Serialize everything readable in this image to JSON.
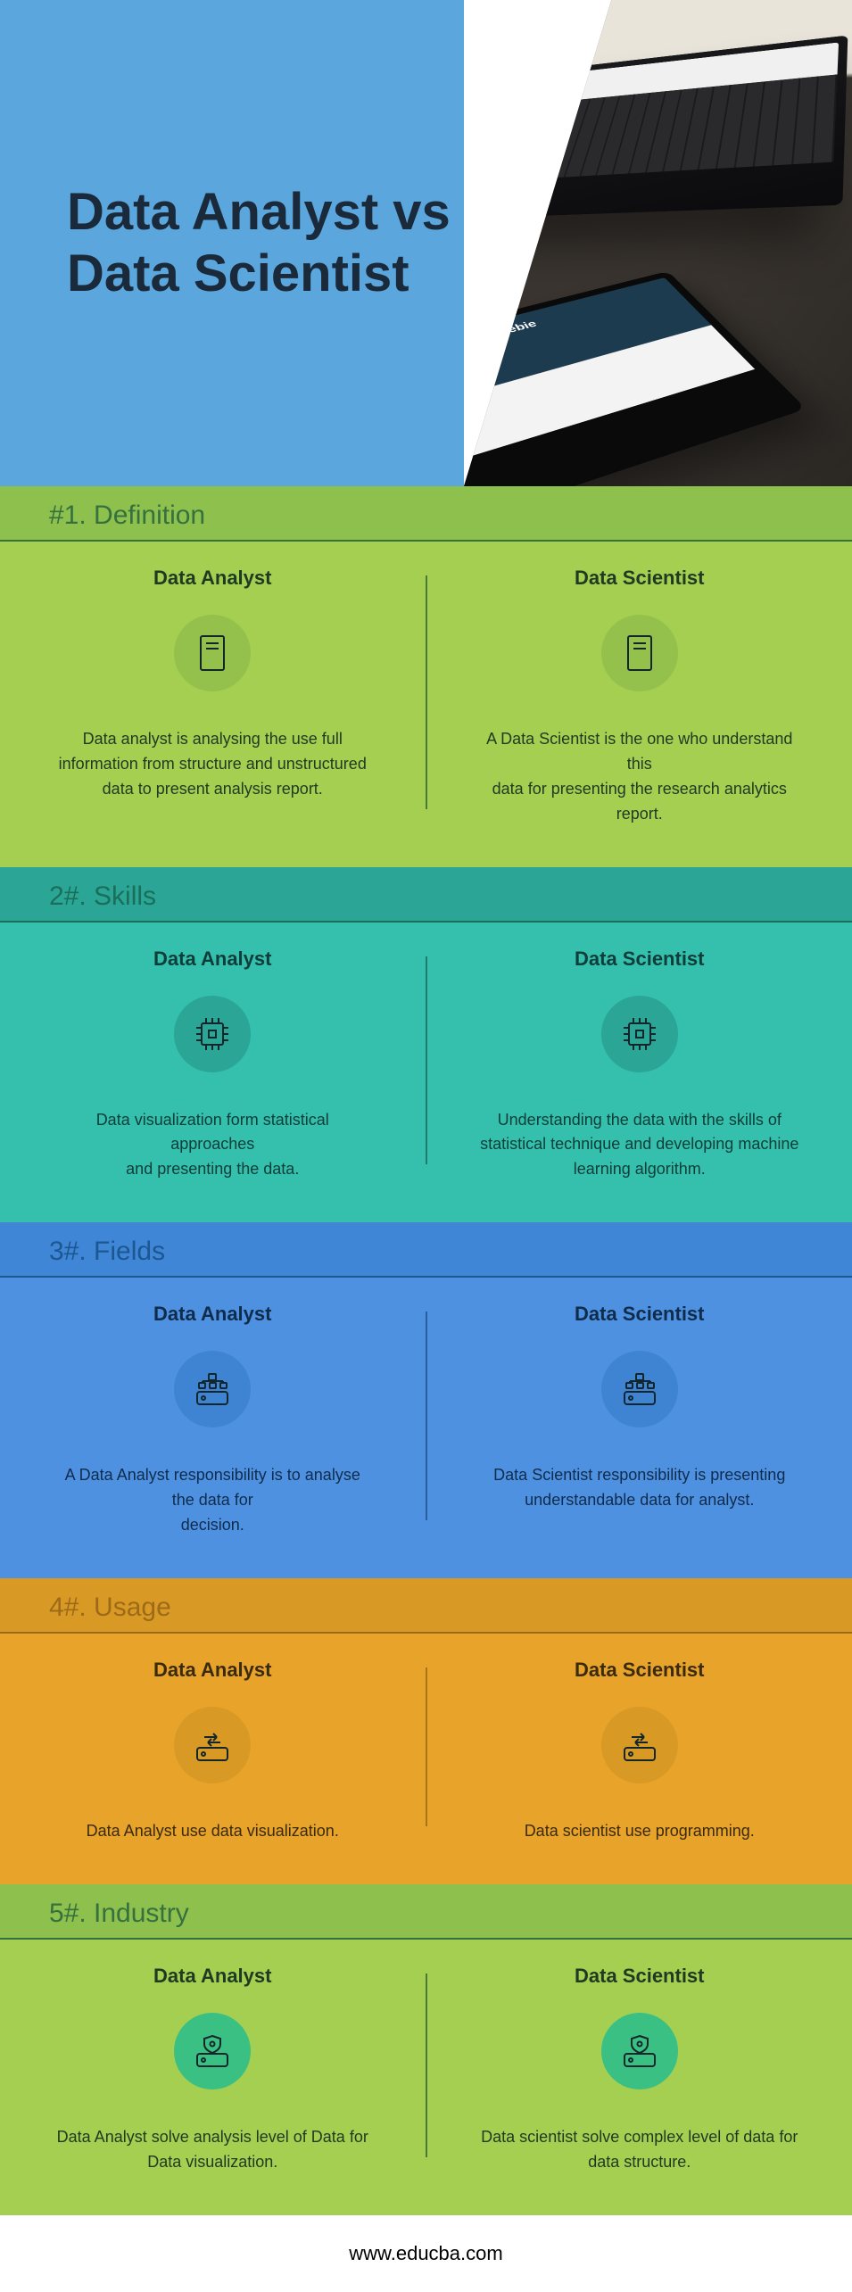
{
  "header": {
    "title": "Data Analyst vs Data Scientist",
    "bg_color": "#5ba7dd",
    "title_color": "#1a2a3a"
  },
  "sections": [
    {
      "num": "#1. Definition",
      "header_bg": "#8dc04d",
      "header_color": "#36703f",
      "body_bg": "#a4cf51",
      "icon_bg": "#93c14c",
      "icon": "book",
      "text_color": "#1e3a22",
      "divider_color": "#4a7a38",
      "left": {
        "title": "Data Analyst",
        "text": "Data analyst is analysing the use full information from structure and unstructured data to present analysis report."
      },
      "right": {
        "title": "Data Scientist",
        "text": "A Data Scientist is the one who understand this\ndata for presenting the research analytics report."
      }
    },
    {
      "num": "2#. Skills",
      "header_bg": "#2ba596",
      "header_color": "#1a6f5b",
      "body_bg": "#34c0ad",
      "icon_bg": "#2aa596",
      "icon": "chip",
      "text_color": "#0f3d3a",
      "divider_color": "#1f7d6e",
      "left": {
        "title": "Data Analyst",
        "text": "Data visualization form statistical approaches\nand presenting the data."
      },
      "right": {
        "title": "Data Scientist",
        "text": "Understanding the data with the skills of statistical technique and developing machine learning algorithm."
      }
    },
    {
      "num": "3#. Fields",
      "header_bg": "#3f86d6",
      "header_color": "#1d5792",
      "body_bg": "#4f91e1",
      "icon_bg": "#3f84d3",
      "icon": "drive-tree",
      "text_color": "#0f2c4c",
      "divider_color": "#27609d",
      "left": {
        "title": "Data Analyst",
        "text": "A Data Analyst  responsibility is to analyse the data for\ndecision."
      },
      "right": {
        "title": "Data Scientist",
        "text": "Data Scientist responsibility is presenting\nunderstandable data for analyst."
      }
    },
    {
      "num": "4#. Usage",
      "header_bg": "#d99a25",
      "header_color": "#9c6a18",
      "body_bg": "#e8a32a",
      "icon_bg": "#d99a25",
      "icon": "drive-swap",
      "text_color": "#3a2a0e",
      "divider_color": "#a87616",
      "left": {
        "title": "Data Analyst",
        "text": "Data Analyst  use data visualization."
      },
      "right": {
        "title": "Data Scientist",
        "text": "Data scientist use  programming."
      }
    },
    {
      "num": "5#. Industry",
      "header_bg": "#8dc04d",
      "header_color": "#36703f",
      "body_bg": "#a4cf51",
      "icon_bg": "#3ac083",
      "icon": "drive-shield",
      "text_color": "#1e3a22",
      "divider_color": "#4a7a38",
      "left": {
        "title": "Data Analyst",
        "text": "Data Analyst  solve analysis  level of Data for Data visualization."
      },
      "right": {
        "title": "Data Scientist",
        "text": "Data scientist  solve complex level of data for data structure."
      }
    }
  ],
  "footer": {
    "text": "www.educba.com"
  }
}
